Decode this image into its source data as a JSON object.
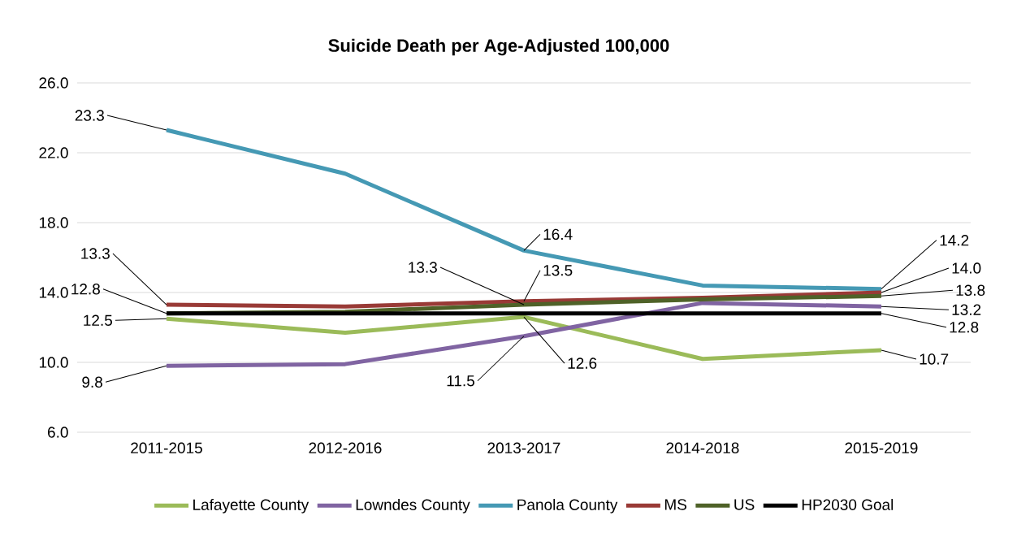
{
  "chart_data": {
    "type": "line",
    "title": "Suicide Death per Age-Adjusted 100,000",
    "categories": [
      "2011-2015",
      "2012-2016",
      "2013-2017",
      "2014-2018",
      "2015-2019"
    ],
    "series": [
      {
        "name": "Lafayette County",
        "color": "#9bbb59",
        "values": [
          12.5,
          11.7,
          12.6,
          10.2,
          10.7
        ],
        "value_labels": [
          "12.5",
          null,
          "12.6",
          null,
          "10.7"
        ]
      },
      {
        "name": "Lowndes County",
        "color": "#8064a2",
        "values": [
          9.8,
          9.9,
          11.5,
          13.4,
          13.2
        ],
        "value_labels": [
          "9.8",
          null,
          "11.5",
          null,
          "13.2"
        ]
      },
      {
        "name": "Panola County",
        "color": "#4599b4",
        "values": [
          23.3,
          20.8,
          16.4,
          14.4,
          14.2
        ],
        "value_labels": [
          "23.3",
          null,
          "16.4",
          null,
          "14.2"
        ]
      },
      {
        "name": "MS",
        "color": "#993a36",
        "values": [
          13.3,
          13.2,
          13.5,
          13.7,
          14.0
        ],
        "value_labels": [
          "13.3",
          null,
          "13.5",
          null,
          "14.0"
        ]
      },
      {
        "name": "US",
        "color": "#4f6228",
        "values": [
          12.8,
          12.9,
          13.3,
          13.6,
          13.8
        ],
        "value_labels": [
          "12.8",
          null,
          "13.3",
          null,
          "13.8"
        ]
      },
      {
        "name": "HP2030 Goal",
        "color": "#000000",
        "values": [
          12.8,
          12.8,
          12.8,
          12.8,
          12.8
        ],
        "value_labels": [
          null,
          null,
          null,
          null,
          "12.8"
        ]
      }
    ],
    "ylim": [
      6,
      26
    ],
    "yticks": [
      {
        "value": 6,
        "label": "6.0"
      },
      {
        "value": 10,
        "label": "10.0"
      },
      {
        "value": 14,
        "label": "14.0"
      },
      {
        "value": 18,
        "label": "18.0"
      },
      {
        "value": 22,
        "label": "22.0"
      },
      {
        "value": 26,
        "label": "26.0"
      }
    ],
    "grid": "y",
    "legend": "bottom",
    "marker": "none",
    "line_style": "solid"
  }
}
